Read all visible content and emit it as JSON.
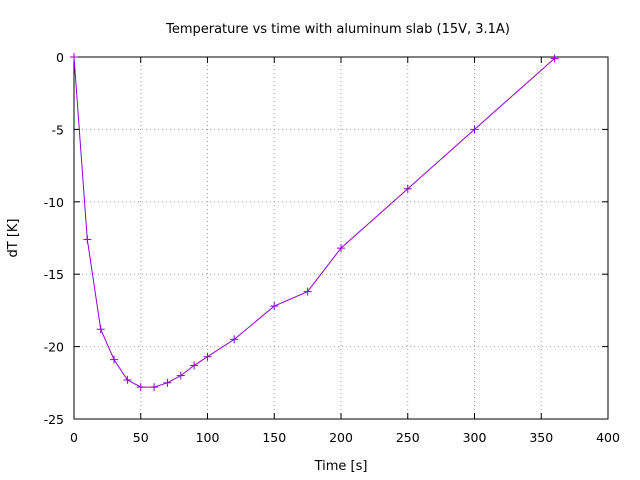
{
  "chart_data": {
    "type": "line",
    "title": "Temperature vs time with aluminum slab (15V, 3.1A)",
    "xlabel": "Time [s]",
    "ylabel": "dT [K]",
    "xlim": [
      0,
      400
    ],
    "ylim": [
      -25,
      0
    ],
    "xticks": [
      0,
      50,
      100,
      150,
      200,
      250,
      300,
      350,
      400
    ],
    "yticks": [
      0,
      -5,
      -10,
      -15,
      -20,
      -25
    ],
    "grid": true,
    "legend": "none",
    "marker": "plus",
    "series": [
      {
        "color": "#9400d3",
        "x": [
          0,
          10,
          20,
          30,
          40,
          50,
          60,
          70,
          80,
          90,
          100,
          120,
          150,
          175,
          200,
          250,
          300,
          360
        ],
        "y": [
          0,
          -12.6,
          -18.8,
          -20.9,
          -22.3,
          -22.8,
          -22.8,
          -22.5,
          -22.0,
          -21.3,
          -20.7,
          -19.5,
          -17.2,
          -16.2,
          -13.2,
          -9.1,
          -5.0,
          -0.1
        ]
      }
    ]
  }
}
